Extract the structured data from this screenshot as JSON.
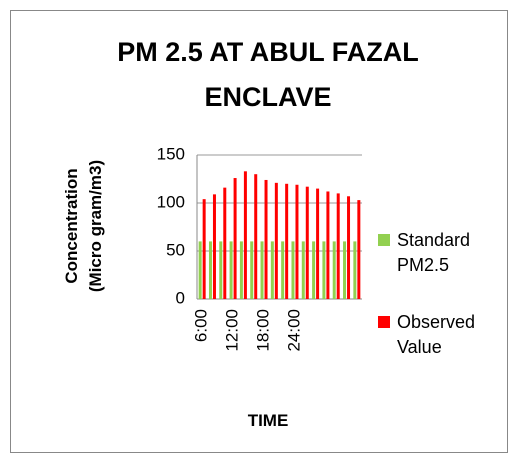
{
  "chart_data": {
    "type": "bar",
    "title": "PM 2.5 AT ABUL FAZAL ENCLAVE",
    "y_label": "Concentration (Micro gram/m3)",
    "x_label": "TIME",
    "categories": [
      "6:00",
      null,
      null,
      "12:00",
      null,
      null,
      "18:00",
      null,
      null,
      "24:00",
      null,
      null,
      null,
      null,
      null,
      null
    ],
    "series": [
      {
        "name": "Standard PM2.5",
        "color": "#92d050",
        "values": [
          60,
          60,
          60,
          60,
          60,
          60,
          60,
          60,
          60,
          60,
          60,
          60,
          60,
          60,
          60,
          60
        ]
      },
      {
        "name": "Observed Value",
        "color": "#ff0000",
        "values": [
          104,
          109,
          116,
          126,
          133,
          130,
          124,
          121,
          120,
          119,
          117,
          115,
          112,
          110,
          107,
          103
        ]
      }
    ],
    "ylim": [
      0,
      150
    ],
    "yticks": [
      0,
      50,
      100,
      150
    ],
    "grid": true,
    "legend": "right"
  }
}
